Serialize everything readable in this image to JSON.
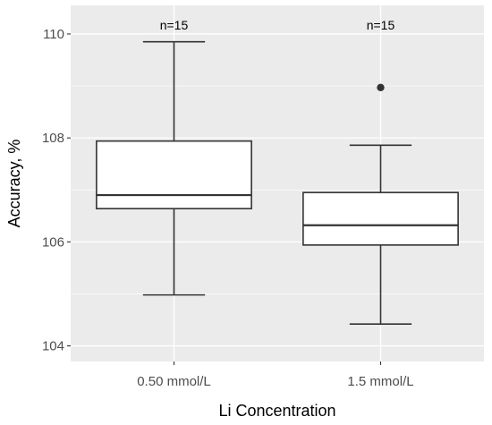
{
  "chart_data": {
    "type": "boxplot",
    "title": "",
    "xlabel": "Li Concentration",
    "ylabel": "Accuracy, %",
    "ylim": [
      103.7,
      110.55
    ],
    "yticks": [
      104,
      106,
      108,
      110
    ],
    "ytick_labels": [
      "104",
      "106",
      "108",
      "110"
    ],
    "grid": true,
    "legend": "none",
    "categories": [
      "0.50 mmol/L",
      "1.5 mmol/L"
    ],
    "boxes": [
      {
        "category": "0.50 mmol/L",
        "whisker_low": 104.98,
        "q1": 106.64,
        "median": 106.9,
        "q3": 107.94,
        "whisker_high": 109.85,
        "outliers": [],
        "n_label": "n=15"
      },
      {
        "category": "1.5 mmol/L",
        "whisker_low": 104.42,
        "q1": 105.94,
        "median": 106.32,
        "q3": 106.95,
        "whisker_high": 107.86,
        "outliers": [
          108.97
        ],
        "n_label": "n=15"
      }
    ],
    "colors": {
      "panel_background": "#ebebeb",
      "grid_major": "#ffffff",
      "box_fill": "#ffffff",
      "box_stroke": "#333333",
      "tick_text": "#4d4d4d"
    }
  }
}
